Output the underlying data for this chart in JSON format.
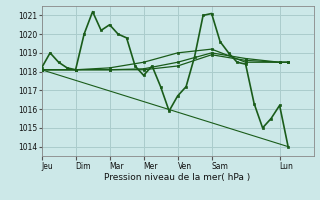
{
  "bg_color": "#cce8e8",
  "grid_color": "#aacccc",
  "line_color": "#1a5c1a",
  "title": "Pression niveau de la mer( hPa )",
  "ylim": [
    1013.5,
    1021.5
  ],
  "yticks": [
    1014,
    1015,
    1016,
    1017,
    1018,
    1019,
    1020,
    1021
  ],
  "day_labels": [
    "Jeu",
    "Dim",
    "Mar",
    "Mer",
    "Ven",
    "Sam",
    "Lun"
  ],
  "day_positions": [
    0,
    24,
    48,
    72,
    96,
    120,
    168
  ],
  "xlim": [
    0,
    192
  ],
  "lines": [
    {
      "x": [
        0,
        6,
        12,
        18,
        24,
        30,
        36,
        42,
        48,
        54,
        60,
        66,
        72,
        78,
        84,
        90,
        96,
        102,
        108,
        114,
        120,
        126,
        132,
        138,
        144,
        150,
        156,
        162,
        168,
        174
      ],
      "y": [
        1018.2,
        1019.0,
        1018.5,
        1018.2,
        1018.1,
        1020.0,
        1021.2,
        1020.2,
        1020.5,
        1020.0,
        1019.8,
        1018.3,
        1017.8,
        1018.3,
        1017.2,
        1015.9,
        1016.7,
        1017.2,
        1018.8,
        1021.0,
        1021.1,
        1019.6,
        1019.0,
        1018.5,
        1018.4,
        1016.3,
        1015.0,
        1015.5,
        1016.2,
        1014.0
      ],
      "markers": true,
      "lw": 1.2
    },
    {
      "x": [
        0,
        24,
        48,
        72,
        96,
        120,
        144,
        168,
        174
      ],
      "y": [
        1018.1,
        1018.1,
        1018.1,
        1018.1,
        1018.3,
        1018.9,
        1018.6,
        1018.5,
        1018.5
      ],
      "markers": true,
      "lw": 0.9
    },
    {
      "x": [
        0,
        24,
        48,
        72,
        96,
        120,
        144,
        168,
        174
      ],
      "y": [
        1018.1,
        1018.1,
        1018.1,
        1018.15,
        1018.5,
        1019.0,
        1018.7,
        1018.5,
        1018.5
      ],
      "markers": true,
      "lw": 0.9
    },
    {
      "x": [
        0,
        24,
        48,
        72,
        96,
        120,
        144,
        168,
        174
      ],
      "y": [
        1018.1,
        1018.1,
        1018.2,
        1018.5,
        1019.0,
        1019.2,
        1018.5,
        1018.5,
        1018.5
      ],
      "markers": true,
      "lw": 0.9
    },
    {
      "x": [
        0,
        174
      ],
      "y": [
        1018.1,
        1014.0
      ],
      "markers": false,
      "lw": 0.8
    }
  ]
}
